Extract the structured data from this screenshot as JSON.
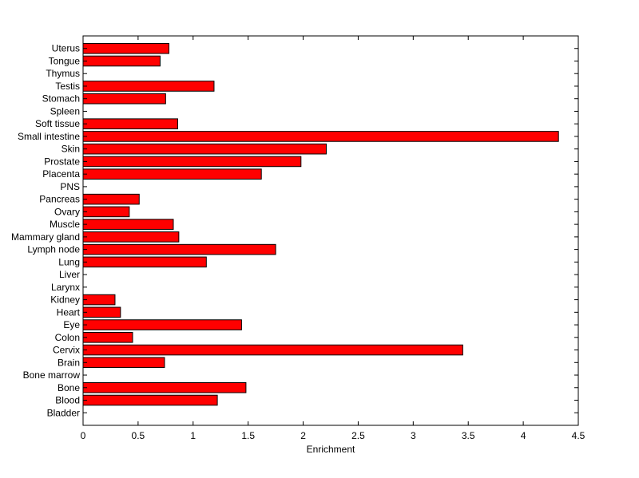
{
  "chart_data": {
    "type": "bar",
    "orientation": "horizontal",
    "title": "",
    "xlabel": "Enrichment",
    "ylabel": "",
    "xlim": [
      0,
      4.5
    ],
    "xticks": [
      "0",
      "0.5",
      "1",
      "1.5",
      "2",
      "2.5",
      "3",
      "3.5",
      "4",
      "4.5"
    ],
    "bar_color": "#ff0000",
    "grid": false,
    "categories": [
      "Bladder",
      "Blood",
      "Bone",
      "Bone marrow",
      "Brain",
      "Cervix",
      "Colon",
      "Eye",
      "Heart",
      "Kidney",
      "Larynx",
      "Liver",
      "Lung",
      "Lymph node",
      "Mammary gland",
      "Muscle",
      "Ovary",
      "Pancreas",
      "PNS",
      "Placenta",
      "Prostate",
      "Skin",
      "Small intestine",
      "Soft tissue",
      "Spleen",
      "Stomach",
      "Testis",
      "Thymus",
      "Tongue",
      "Uterus"
    ],
    "values": [
      0,
      1.22,
      1.48,
      0,
      0.74,
      3.45,
      0.45,
      1.44,
      0.34,
      0.29,
      0,
      0,
      1.12,
      1.75,
      0.87,
      0.82,
      0.42,
      0.51,
      0,
      1.62,
      1.98,
      2.21,
      4.32,
      0.86,
      0,
      0.75,
      1.19,
      0,
      0.7,
      0.78
    ]
  }
}
